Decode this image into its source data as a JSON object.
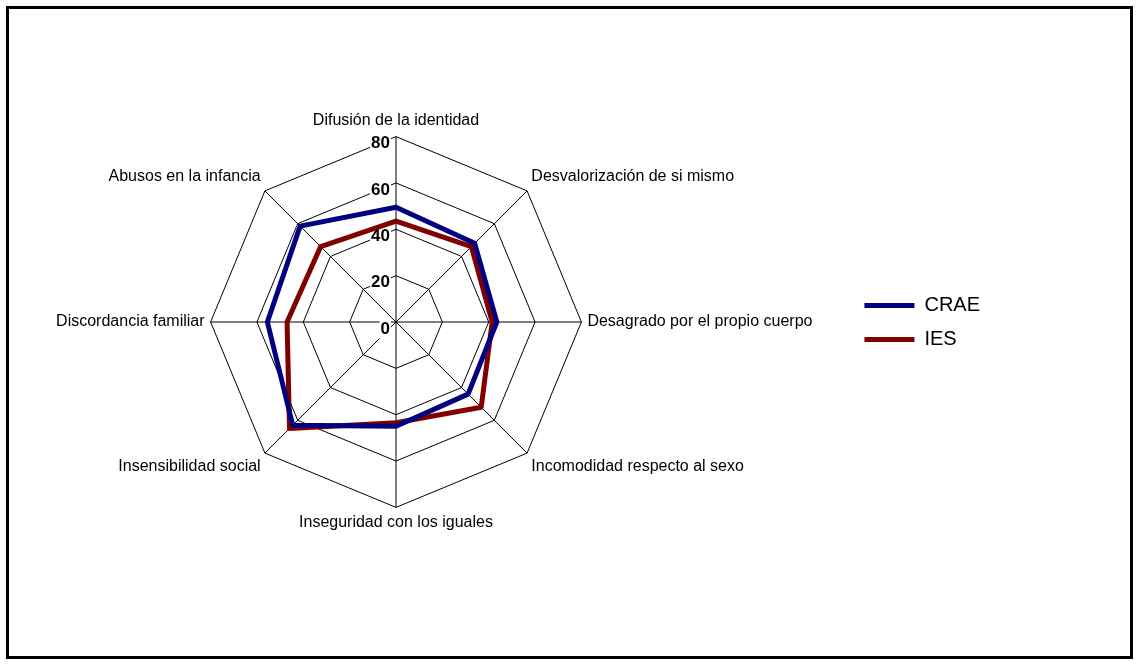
{
  "chart_data": {
    "type": "radar",
    "categories": [
      "Difusión de la identidad",
      "Desvalorización de si mismo",
      "Desagrado por el propio cuerpo",
      "Incomodidad respecto al sexo",
      "Inseguridad con los iguales",
      "Insensibilidad social",
      "Discordancia familiar",
      "Abusos en la infancia"
    ],
    "series": [
      {
        "name": "CRAE",
        "color": "#000080",
        "values": [
          49.5,
          48,
          43.5,
          44,
          45,
          63,
          55.5,
          58.5
        ]
      },
      {
        "name": "IES",
        "color": "#800000",
        "values": [
          43.5,
          46,
          41.5,
          52,
          43.5,
          65,
          47,
          46
        ]
      }
    ],
    "ylim": [
      0,
      80
    ],
    "yticks": [
      0,
      20,
      40,
      60,
      80
    ],
    "grid": true,
    "legend": "right",
    "marker": "none",
    "line_style": "solid"
  }
}
